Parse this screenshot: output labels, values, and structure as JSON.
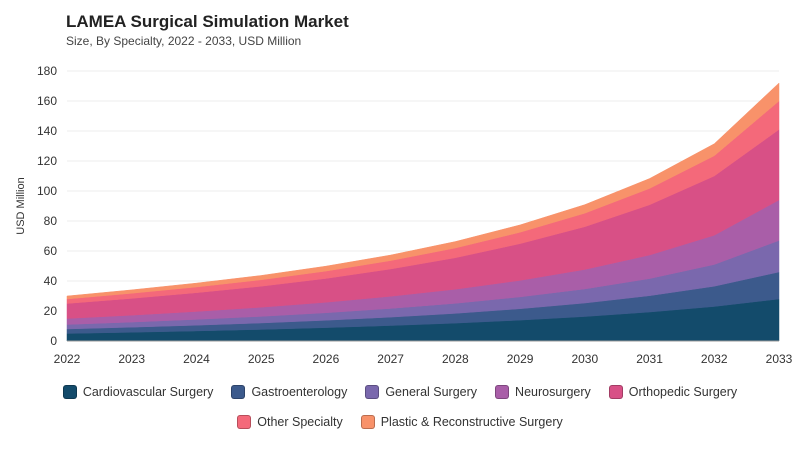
{
  "header": {
    "title": "LAMEA Surgical Simulation Market",
    "subtitle": "Size, By Specialty, 2022 - 2033, USD Million"
  },
  "chart_data": {
    "type": "area",
    "stacked": true,
    "title": "LAMEA Surgical Simulation Market",
    "subtitle": "Size, By Specialty, 2022 - 2033, USD Million",
    "xlabel": "",
    "ylabel": "USD Million",
    "ylim": [
      0,
      180
    ],
    "yticks": [
      0,
      20,
      40,
      60,
      80,
      100,
      120,
      140,
      160,
      180
    ],
    "grid": true,
    "legend_position": "bottom",
    "x": [
      "2022",
      "2023",
      "2024",
      "2025",
      "2026",
      "2027",
      "2028",
      "2029",
      "2030",
      "2031",
      "2032",
      "2033"
    ],
    "series": [
      {
        "name": "Cardiovascular Surgery",
        "color": "#134b6b",
        "values": [
          5,
          5.8,
          6.7,
          7.7,
          8.9,
          10.3,
          11.9,
          13.9,
          16.3,
          19.3,
          23.0,
          28.0
        ]
      },
      {
        "name": "Gastroenterology",
        "color": "#3c5a8c",
        "values": [
          3,
          3.4,
          3.8,
          4.3,
          4.9,
          5.6,
          6.5,
          7.6,
          9.0,
          10.9,
          13.5,
          18.0
        ]
      },
      {
        "name": "General Surgery",
        "color": "#7a68ad",
        "values": [
          3,
          3.4,
          3.9,
          4.4,
          5.0,
          5.8,
          6.7,
          7.9,
          9.4,
          11.4,
          14.5,
          21.0
        ]
      },
      {
        "name": "Neurosurgery",
        "color": "#a95ea8",
        "values": [
          4,
          4.6,
          5.3,
          6.1,
          7.0,
          8.1,
          9.4,
          11.0,
          13.0,
          15.7,
          19.5,
          27.0
        ]
      },
      {
        "name": "Orthopedic Surgery",
        "color": "#d85086",
        "values": [
          10,
          11.2,
          12.5,
          14.0,
          15.9,
          18.2,
          21.0,
          24.5,
          28.5,
          33.5,
          39.5,
          47.0
        ]
      },
      {
        "name": "Other Specialty",
        "color": "#f4697a",
        "values": [
          3,
          3.4,
          3.8,
          4.3,
          4.9,
          5.6,
          6.5,
          7.6,
          9.0,
          10.9,
          13.5,
          19.0
        ]
      },
      {
        "name": "Plastic & Reconstructive Surgery",
        "color": "#f8926a",
        "values": [
          2,
          2.3,
          2.6,
          2.9,
          3.3,
          3.7,
          4.3,
          4.9,
          5.7,
          6.6,
          8.0,
          12.0
        ]
      }
    ]
  }
}
